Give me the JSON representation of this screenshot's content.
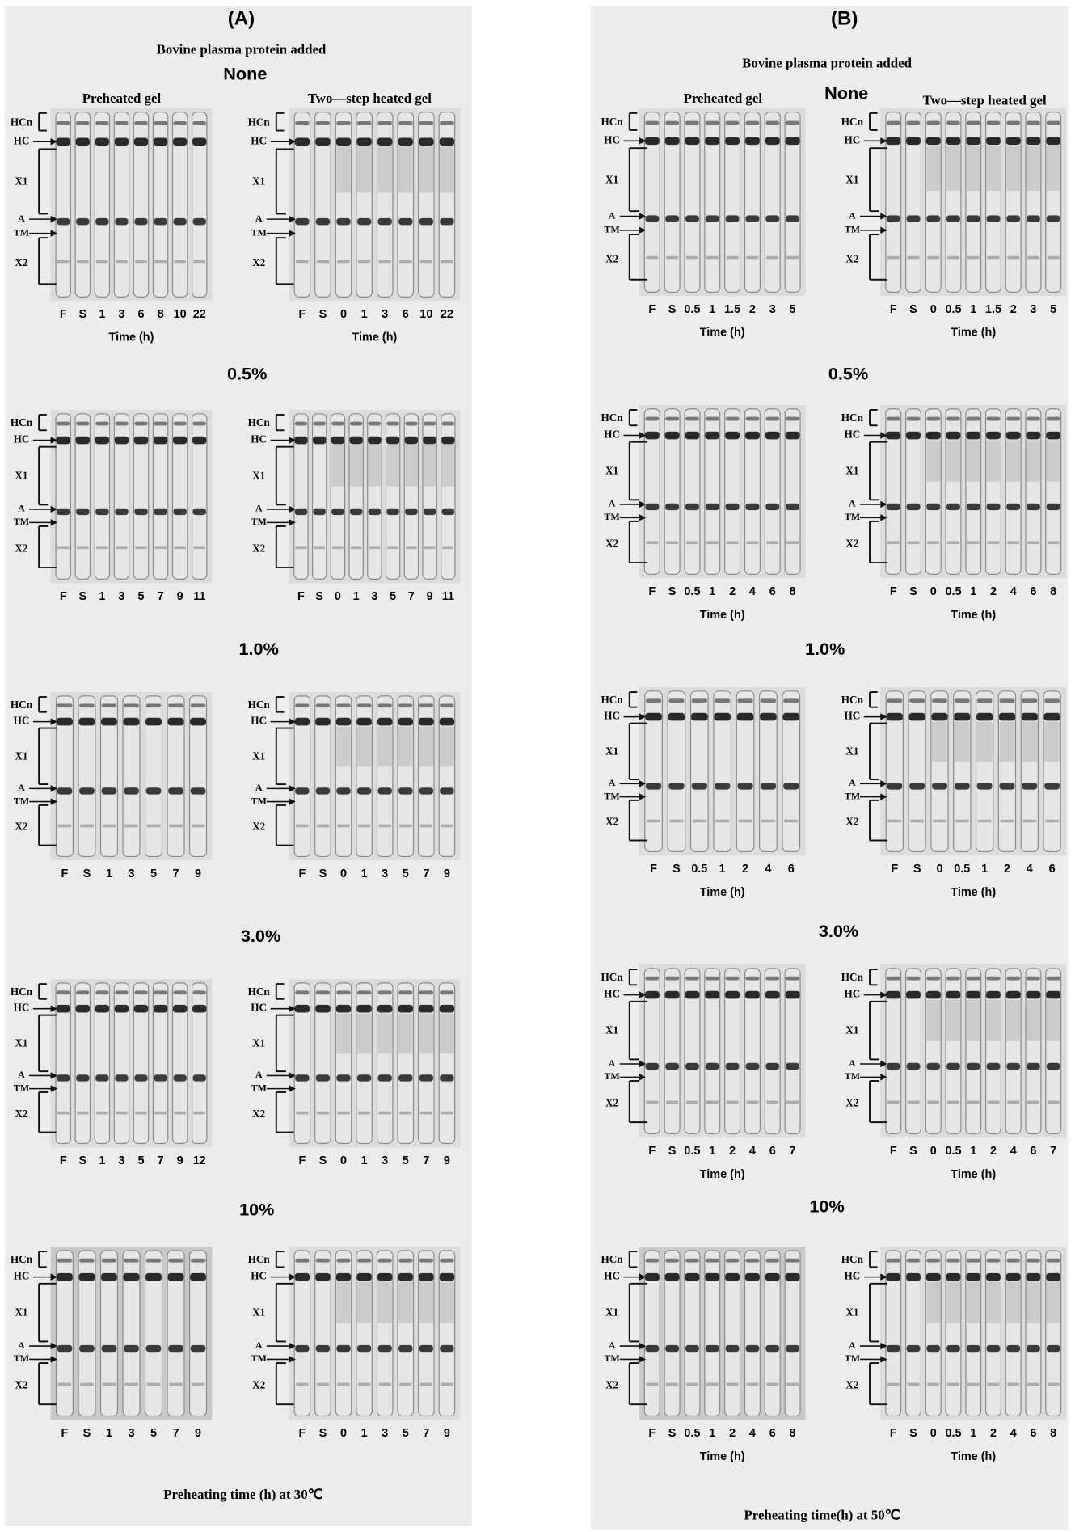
{
  "panels": [
    {
      "label": "(A)",
      "subtitle": "Bovine plasma protein added",
      "column_titles": [
        "Preheated gel",
        "Two—step heated gel"
      ],
      "band_labels": [
        "HCn",
        "HC",
        "X1",
        "A",
        "TM",
        "X2"
      ],
      "rows": [
        {
          "heading": "None",
          "gels": [
            {
              "lanes": [
                "F",
                "S",
                "1",
                "3",
                "6",
                "8",
                "10",
                "22"
              ],
              "time_label": "Time (h)"
            },
            {
              "lanes": [
                "F",
                "S",
                "0",
                "1",
                "3",
                "6",
                "10",
                "22"
              ],
              "time_label": "Time (h)"
            }
          ]
        },
        {
          "heading": "0.5%",
          "gels": [
            {
              "lanes": [
                "F",
                "S",
                "1",
                "3",
                "5",
                "7",
                "9",
                "11"
              ]
            },
            {
              "lanes": [
                "F",
                "S",
                "0",
                "1",
                "3",
                "5",
                "7",
                "9",
                "11"
              ]
            }
          ]
        },
        {
          "heading": "1.0%",
          "gels": [
            {
              "lanes": [
                "F",
                "S",
                "1",
                "3",
                "5",
                "7",
                "9"
              ]
            },
            {
              "lanes": [
                "F",
                "S",
                "0",
                "1",
                "3",
                "5",
                "7",
                "9"
              ]
            }
          ]
        },
        {
          "heading": "3.0%",
          "gels": [
            {
              "lanes": [
                "F",
                "S",
                "1",
                "3",
                "5",
                "7",
                "9",
                "12"
              ]
            },
            {
              "lanes": [
                "F",
                "S",
                "0",
                "1",
                "3",
                "5",
                "7",
                "9"
              ]
            }
          ]
        },
        {
          "heading": "10%",
          "gels": [
            {
              "lanes": [
                "F",
                "S",
                "1",
                "3",
                "5",
                "7",
                "9"
              ]
            },
            {
              "lanes": [
                "F",
                "S",
                "0",
                "1",
                "3",
                "5",
                "7",
                "9"
              ]
            }
          ]
        }
      ],
      "footer": "Preheating time (h) at 30℃"
    },
    {
      "label": "(B)",
      "subtitle": "Bovine plasma protein added",
      "column_titles": [
        "Preheated gel",
        "Two—step heated gel"
      ],
      "band_labels": [
        "HCn",
        "HC",
        "X1",
        "A",
        "TM",
        "X2"
      ],
      "rows": [
        {
          "heading": "None",
          "gels": [
            {
              "lanes": [
                "F",
                "S",
                "0.5",
                "1",
                "1.5",
                "2",
                "3",
                "5"
              ],
              "time_label": "Time (h)"
            },
            {
              "lanes": [
                "F",
                "S",
                "0",
                "0.5",
                "1",
                "1.5",
                "2",
                "3",
                "5"
              ],
              "time_label": "Time (h)"
            }
          ]
        },
        {
          "heading": "0.5%",
          "gels": [
            {
              "lanes": [
                "F",
                "S",
                "0.5",
                "1",
                "2",
                "4",
                "6",
                "8"
              ],
              "time_label": "Time (h)"
            },
            {
              "lanes": [
                "F",
                "S",
                "0",
                "0.5",
                "1",
                "2",
                "4",
                "6",
                "8"
              ],
              "time_label": "Time (h)"
            }
          ]
        },
        {
          "heading": "1.0%",
          "gels": [
            {
              "lanes": [
                "F",
                "S",
                "0.5",
                "1",
                "2",
                "4",
                "6"
              ],
              "time_label": "Time (h)"
            },
            {
              "lanes": [
                "F",
                "S",
                "0",
                "0.5",
                "1",
                "2",
                "4",
                "6"
              ],
              "time_label": "Time (h)"
            }
          ]
        },
        {
          "heading": "3.0%",
          "gels": [
            {
              "lanes": [
                "F",
                "S",
                "0.5",
                "1",
                "2",
                "4",
                "6",
                "7"
              ],
              "time_label": "Time (h)"
            },
            {
              "lanes": [
                "F",
                "S",
                "0",
                "0.5",
                "1",
                "2",
                "4",
                "6",
                "7"
              ],
              "time_label": "Time (h)"
            }
          ]
        },
        {
          "heading": "10%",
          "gels": [
            {
              "lanes": [
                "F",
                "S",
                "0.5",
                "1",
                "2",
                "4",
                "6",
                "8"
              ],
              "time_label": "Time (h)"
            },
            {
              "lanes": [
                "F",
                "S",
                "0",
                "0.5",
                "1",
                "2",
                "4",
                "6",
                "8"
              ],
              "time_label": "Time (h)"
            }
          ]
        }
      ],
      "footer": "Preheating time(h) at 50℃"
    }
  ]
}
